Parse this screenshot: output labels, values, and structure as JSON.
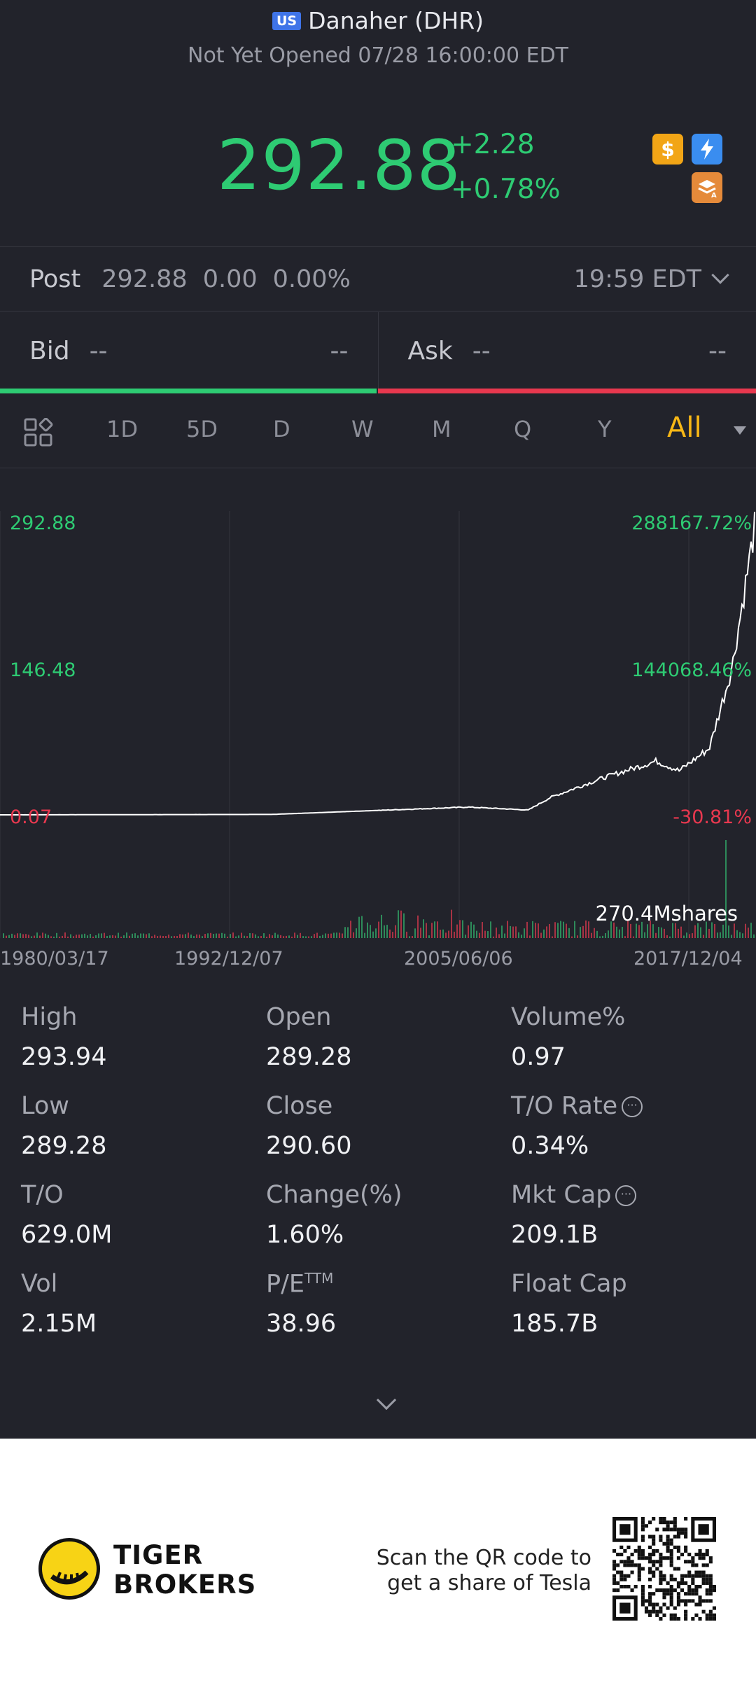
{
  "header": {
    "market_badge": "US",
    "title": "Danaher (DHR)",
    "status": "Not Yet Opened 07/28 16:00:00 EDT"
  },
  "quote": {
    "price": "292.88",
    "change": "+2.28",
    "change_pct": "+0.78%",
    "color_up": "#2ecb73",
    "color_down": "#e8384f",
    "badge_icons": [
      "dollar-icon",
      "bolt-icon",
      "layers-icon"
    ]
  },
  "post": {
    "label": "Post",
    "price": "292.88",
    "change": "0.00",
    "change_pct": "0.00%",
    "time": "19:59 EDT"
  },
  "bid": {
    "label": "Bid",
    "price": "--",
    "size": "--"
  },
  "ask": {
    "label": "Ask",
    "price": "--",
    "size": "--"
  },
  "periods": [
    "1D",
    "5D",
    "D",
    "W",
    "M",
    "Q",
    "Y",
    "All"
  ],
  "active_period": "All",
  "chart": {
    "left_labels": {
      "top": "292.88",
      "mid": "146.48",
      "bottom": "0.07"
    },
    "right_labels": {
      "top": "288167.72%",
      "mid": "144068.46%",
      "bottom": "-30.81%"
    },
    "volume_label": "270.4Mshares",
    "dates": [
      "1980/03/17",
      "1992/12/07",
      "2005/06/06",
      "2017/12/04"
    ]
  },
  "chart_data": {
    "type": "line",
    "x": [
      "1980/03/17",
      "1992/12/07",
      "2005/06/06",
      "2017/12/04",
      "2021/07/28"
    ],
    "y": [
      0.07,
      0.5,
      5,
      60,
      292.88
    ],
    "ylim": [
      0.07,
      292.88
    ],
    "y_ticks": [
      "292.88",
      "146.48",
      "0.07"
    ],
    "y2_ticks": [
      "288167.72%",
      "144068.46%",
      "-30.81%"
    ],
    "grid": true,
    "line_color": "#ffffff",
    "volume_max": "270.4Mshares"
  },
  "stats": [
    {
      "label": "High",
      "value": "293.94"
    },
    {
      "label": "Open",
      "value": "289.28"
    },
    {
      "label": "Volume%",
      "value": "0.97"
    },
    {
      "label": "Low",
      "value": "289.28"
    },
    {
      "label": "Close",
      "value": "290.60"
    },
    {
      "label": "T/O Rate",
      "value": "0.34%"
    },
    {
      "label": "T/O",
      "value": "629.0M"
    },
    {
      "label": "Change(%)",
      "value": "1.60%"
    },
    {
      "label": "Mkt Cap",
      "value": "209.1B"
    },
    {
      "label": "Vol",
      "value": "2.15M"
    },
    {
      "label": "P/E",
      "value": "38.96"
    },
    {
      "label": "Float Cap",
      "value": "185.7B"
    }
  ],
  "pe_suffix": "TTM",
  "footer": {
    "brand_line1": "TIGER",
    "brand_line2": "BROKERS",
    "scan_line1": "Scan the QR code to",
    "scan_line2": "get a share of Tesla"
  }
}
